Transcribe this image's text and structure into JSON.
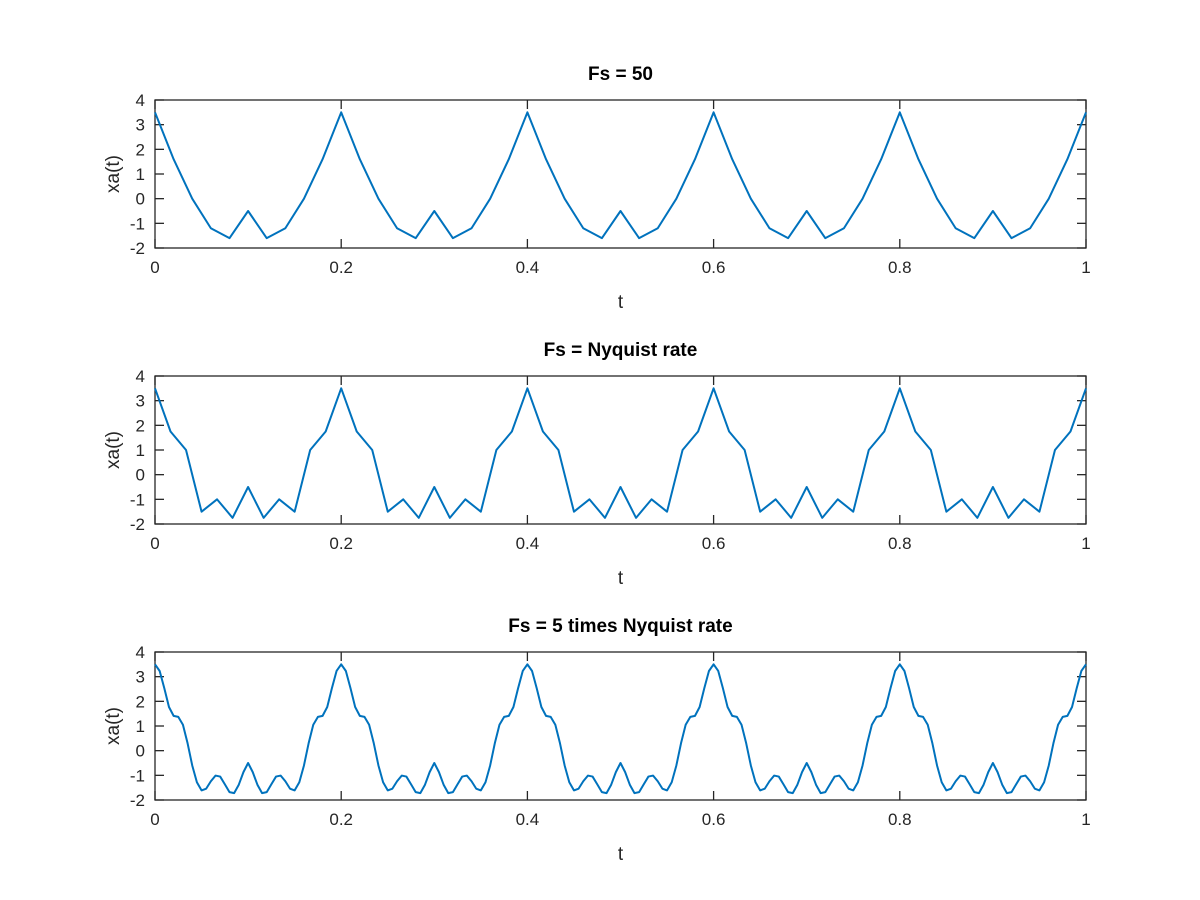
{
  "chart_data": [
    {
      "type": "line",
      "title": "Fs = 50",
      "xlabel": "t",
      "ylabel": "xa(t)",
      "xlim": [
        0,
        1
      ],
      "ylim": [
        -2,
        4
      ],
      "xticks": [
        "0",
        "0.2",
        "0.4",
        "0.6",
        "0.8",
        "1"
      ],
      "yticks": [
        "-2",
        "-1",
        "0",
        "1",
        "2",
        "3",
        "4"
      ],
      "grid": false,
      "color": "#0072BD",
      "series": [
        {
          "x": [
            0,
            0.02,
            0.04,
            0.06,
            0.08,
            0.1,
            0.12,
            0.14,
            0.16,
            0.18,
            0.2,
            0.22,
            0.24,
            0.26,
            0.28,
            0.3,
            0.32,
            0.34,
            0.36,
            0.38,
            0.4,
            0.42,
            0.44,
            0.46,
            0.48,
            0.5,
            0.52,
            0.54,
            0.56,
            0.58,
            0.6,
            0.62,
            0.64,
            0.66,
            0.68,
            0.7,
            0.72,
            0.74,
            0.76,
            0.78,
            0.8,
            0.82,
            0.84,
            0.86,
            0.88,
            0.9,
            0.92,
            0.94,
            0.96,
            0.98,
            1
          ],
          "y": [
            3.5,
            1.6,
            0.0,
            -1.2,
            -1.6,
            -0.5,
            -1.6,
            -1.2,
            0.0,
            1.6,
            3.5,
            1.6,
            0.0,
            -1.2,
            -1.6,
            -0.5,
            -1.6,
            -1.2,
            0.0,
            1.6,
            3.5,
            1.6,
            0.0,
            -1.2,
            -1.6,
            -0.5,
            -1.6,
            -1.2,
            0.0,
            1.6,
            3.5,
            1.6,
            0.0,
            -1.2,
            -1.6,
            -0.5,
            -1.6,
            -1.2,
            0.0,
            1.6,
            3.5,
            1.6,
            0.0,
            -1.2,
            -1.6,
            -0.5,
            -1.6,
            -1.2,
            0.0,
            1.6,
            3.5
          ]
        }
      ]
    },
    {
      "type": "line",
      "title": "Fs = Nyquist rate",
      "xlabel": "t",
      "ylabel": "xa(t)",
      "xlim": [
        0,
        1
      ],
      "ylim": [
        -2,
        4
      ],
      "xticks": [
        "0",
        "0.2",
        "0.4",
        "0.6",
        "0.8",
        "1"
      ],
      "yticks": [
        "-2",
        "-1",
        "0",
        "1",
        "2",
        "3",
        "4"
      ],
      "grid": false,
      "color": "#0072BD",
      "series": [
        {
          "x": [
            0,
            0.01667,
            0.03333,
            0.05,
            0.06667,
            0.08333,
            0.1,
            0.11667,
            0.13333,
            0.15,
            0.16667,
            0.18333,
            0.2,
            0.21667,
            0.23333,
            0.25,
            0.26667,
            0.28333,
            0.3,
            0.31667,
            0.33333,
            0.35,
            0.36667,
            0.38333,
            0.4,
            0.41667,
            0.43333,
            0.45,
            0.46667,
            0.48333,
            0.5,
            0.51667,
            0.53333,
            0.55,
            0.56667,
            0.58333,
            0.6,
            0.61667,
            0.63333,
            0.65,
            0.66667,
            0.68333,
            0.7,
            0.71667,
            0.73333,
            0.75,
            0.76667,
            0.78333,
            0.8,
            0.81667,
            0.83333,
            0.85,
            0.86667,
            0.88333,
            0.9,
            0.91667,
            0.93333,
            0.95,
            0.96667,
            0.98333,
            1
          ],
          "y": [
            3.5,
            1.75,
            1.0,
            -1.5,
            -1.0,
            -1.75,
            -0.5,
            -1.75,
            -1.0,
            -1.5,
            1.0,
            1.75,
            3.5,
            1.75,
            1.0,
            -1.5,
            -1.0,
            -1.75,
            -0.5,
            -1.75,
            -1.0,
            -1.5,
            1.0,
            1.75,
            3.5,
            1.75,
            1.0,
            -1.5,
            -1.0,
            -1.75,
            -0.5,
            -1.75,
            -1.0,
            -1.5,
            1.0,
            1.75,
            3.5,
            1.75,
            1.0,
            -1.5,
            -1.0,
            -1.75,
            -0.5,
            -1.75,
            -1.0,
            -1.5,
            1.0,
            1.75,
            3.5,
            1.75,
            1.0,
            -1.5,
            -1.0,
            -1.75,
            -0.5,
            -1.75,
            -1.0,
            -1.5,
            1.0,
            1.75,
            3.5
          ]
        }
      ]
    },
    {
      "type": "line",
      "title": "Fs = 5 times Nyquist rate",
      "xlabel": "t",
      "ylabel": "xa(t)",
      "xlim": [
        0,
        1
      ],
      "ylim": [
        -2,
        4
      ],
      "xticks": [
        "0",
        "0.2",
        "0.4",
        "0.6",
        "0.8",
        "1"
      ],
      "yticks": [
        "-2",
        "-1",
        "0",
        "1",
        "2",
        "3",
        "4"
      ],
      "grid": false,
      "color": "#0072BD",
      "series": [
        {
          "x": [
            0,
            0.005,
            0.01,
            0.015,
            0.02,
            0.025,
            0.03,
            0.035,
            0.04,
            0.045,
            0.05,
            0.055,
            0.06,
            0.065,
            0.07,
            0.075,
            0.08,
            0.085,
            0.09,
            0.095,
            0.1,
            0.105,
            0.11,
            0.115,
            0.12,
            0.125,
            0.13,
            0.135,
            0.14,
            0.145,
            0.15,
            0.155,
            0.16,
            0.165,
            0.17,
            0.175,
            0.18,
            0.185,
            0.19,
            0.195,
            0.2,
            0.205,
            0.21,
            0.215,
            0.22,
            0.225,
            0.23,
            0.235,
            0.24,
            0.245,
            0.25,
            0.255,
            0.26,
            0.265,
            0.27,
            0.275,
            0.28,
            0.285,
            0.29,
            0.295,
            0.3,
            0.305,
            0.31,
            0.315,
            0.32,
            0.325,
            0.33,
            0.335,
            0.34,
            0.345,
            0.35,
            0.355,
            0.36,
            0.365,
            0.37,
            0.375,
            0.38,
            0.385,
            0.39,
            0.395,
            0.4,
            0.405,
            0.41,
            0.415,
            0.42,
            0.425,
            0.43,
            0.435,
            0.44,
            0.445,
            0.45,
            0.455,
            0.46,
            0.465,
            0.47,
            0.475,
            0.48,
            0.485,
            0.49,
            0.495,
            0.5,
            0.505,
            0.51,
            0.515,
            0.52,
            0.525,
            0.53,
            0.535,
            0.54,
            0.545,
            0.55,
            0.555,
            0.56,
            0.565,
            0.57,
            0.575,
            0.58,
            0.585,
            0.59,
            0.595,
            0.6,
            0.605,
            0.61,
            0.615,
            0.62,
            0.625,
            0.63,
            0.635,
            0.64,
            0.645,
            0.65,
            0.655,
            0.66,
            0.665,
            0.67,
            0.675,
            0.68,
            0.685,
            0.69,
            0.695,
            0.7,
            0.705,
            0.71,
            0.715,
            0.72,
            0.725,
            0.73,
            0.735,
            0.74,
            0.745,
            0.75,
            0.755,
            0.76,
            0.765,
            0.77,
            0.775,
            0.78,
            0.785,
            0.79,
            0.795,
            0.8,
            0.805,
            0.81,
            0.815,
            0.82,
            0.825,
            0.83,
            0.835,
            0.84,
            0.845,
            0.85,
            0.855,
            0.86,
            0.865,
            0.87,
            0.875,
            0.88,
            0.885,
            0.89,
            0.895,
            0.9,
            0.905,
            0.91,
            0.915,
            0.92,
            0.925,
            0.93,
            0.935,
            0.94,
            0.945,
            0.95,
            0.955,
            0.96,
            0.965,
            0.97,
            0.975,
            0.98,
            0.985,
            0.99,
            0.995,
            1
          ],
          "y": [
            3.5,
            3.23,
            2.53,
            1.77,
            1.41,
            1.37,
            1.05,
            0.3,
            -0.6,
            -1.28,
            -1.61,
            -1.54,
            -1.24,
            -1.01,
            -1.05,
            -1.36,
            -1.68,
            -1.72,
            -1.38,
            -0.87,
            -0.5,
            -0.87,
            -1.38,
            -1.72,
            -1.68,
            -1.36,
            -1.05,
            -1.01,
            -1.24,
            -1.54,
            -1.61,
            -1.28,
            -0.6,
            0.3,
            1.05,
            1.37,
            1.41,
            1.77,
            2.53,
            3.23,
            3.5,
            3.23,
            2.53,
            1.77,
            1.41,
            1.37,
            1.05,
            0.3,
            -0.6,
            -1.28,
            -1.61,
            -1.54,
            -1.24,
            -1.01,
            -1.05,
            -1.36,
            -1.68,
            -1.72,
            -1.38,
            -0.87,
            -0.5,
            -0.87,
            -1.38,
            -1.72,
            -1.68,
            -1.36,
            -1.05,
            -1.01,
            -1.24,
            -1.54,
            -1.61,
            -1.28,
            -0.6,
            0.3,
            1.05,
            1.37,
            1.41,
            1.77,
            2.53,
            3.23,
            3.5,
            3.23,
            2.53,
            1.77,
            1.41,
            1.37,
            1.05,
            0.3,
            -0.6,
            -1.28,
            -1.61,
            -1.54,
            -1.24,
            -1.01,
            -1.05,
            -1.36,
            -1.68,
            -1.72,
            -1.38,
            -0.87,
            -0.5,
            -0.87,
            -1.38,
            -1.72,
            -1.68,
            -1.36,
            -1.05,
            -1.01,
            -1.24,
            -1.54,
            -1.61,
            -1.28,
            -0.6,
            0.3,
            1.05,
            1.37,
            1.41,
            1.77,
            2.53,
            3.23,
            3.5,
            3.23,
            2.53,
            1.77,
            1.41,
            1.37,
            1.05,
            0.3,
            -0.6,
            -1.28,
            -1.61,
            -1.54,
            -1.24,
            -1.01,
            -1.05,
            -1.36,
            -1.68,
            -1.72,
            -1.38,
            -0.87,
            -0.5,
            -0.87,
            -1.38,
            -1.72,
            -1.68,
            -1.36,
            -1.05,
            -1.01,
            -1.24,
            -1.54,
            -1.61,
            -1.28,
            -0.6,
            0.3,
            1.05,
            1.37,
            1.41,
            1.77,
            2.53,
            3.23,
            3.5,
            3.23,
            2.53,
            1.77,
            1.41,
            1.37,
            1.05,
            0.3,
            -0.6,
            -1.28,
            -1.61,
            -1.54,
            -1.24,
            -1.01,
            -1.05,
            -1.36,
            -1.68,
            -1.72,
            -1.38,
            -0.87,
            -0.5,
            -0.87,
            -1.38,
            -1.72,
            -1.68,
            -1.36,
            -1.05,
            -1.01,
            -1.24,
            -1.54,
            -1.61,
            -1.28,
            -0.6,
            0.3,
            1.05,
            1.37,
            1.41,
            1.77,
            2.53,
            3.23,
            3.5
          ]
        }
      ]
    }
  ]
}
